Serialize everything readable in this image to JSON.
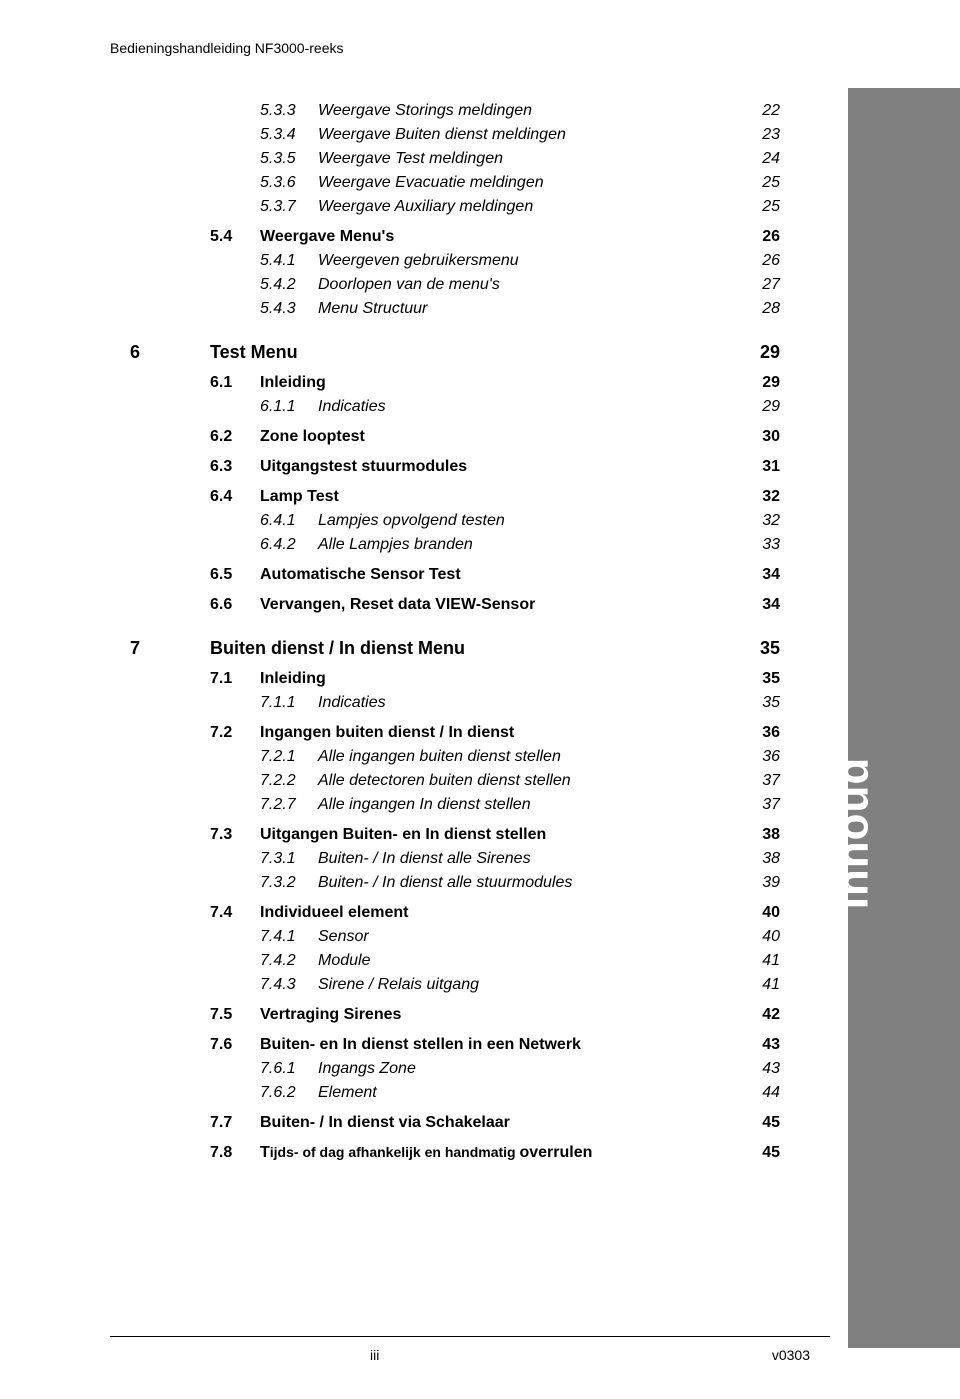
{
  "header": "Bedieningshandleiding NF3000-reeks",
  "sidebar_label": "Inhoud",
  "footer": {
    "left": "iii",
    "right": "v0303"
  },
  "toc": [
    {
      "lvl": 3,
      "num": "5.3.3",
      "title": "Weergave Storings meldingen",
      "pg": "22"
    },
    {
      "lvl": 3,
      "num": "5.3.4",
      "title": "Weergave Buiten dienst meldingen",
      "pg": "23"
    },
    {
      "lvl": 3,
      "num": "5.3.5",
      "title": "Weergave Test meldingen",
      "pg": "24"
    },
    {
      "lvl": 3,
      "num": "5.3.6",
      "title": "Weergave Evacuatie meldingen",
      "pg": "25"
    },
    {
      "lvl": 3,
      "num": "5.3.7",
      "title": "Weergave Auxiliary meldingen",
      "pg": "25"
    },
    {
      "lvl": 2,
      "num": "5.4",
      "title": "Weergave Menu's",
      "pg": "26"
    },
    {
      "lvl": 3,
      "num": "5.4.1",
      "title": "Weergeven gebruikersmenu",
      "pg": "26"
    },
    {
      "lvl": 3,
      "num": "5.4.2",
      "title": "Doorlopen van de menu's",
      "pg": "27"
    },
    {
      "lvl": 3,
      "num": "5.4.3",
      "title": "Menu Structuur",
      "pg": "28"
    },
    {
      "lvl": 1,
      "num": "6",
      "title": "Test Menu",
      "pg": "29"
    },
    {
      "lvl": 2,
      "num": "6.1",
      "title": "Inleiding",
      "pg": "29"
    },
    {
      "lvl": 3,
      "num": "6.1.1",
      "title": "Indicaties",
      "pg": "29"
    },
    {
      "lvl": 2,
      "num": "6.2",
      "title": "Zone looptest",
      "pg": "30"
    },
    {
      "lvl": 2,
      "num": "6.3",
      "title": "Uitgangstest stuurmodules",
      "pg": "31"
    },
    {
      "lvl": 2,
      "num": "6.4",
      "title": "Lamp Test",
      "pg": "32"
    },
    {
      "lvl": 3,
      "num": "6.4.1",
      "title": "Lampjes opvolgend testen",
      "pg": "32"
    },
    {
      "lvl": 3,
      "num": "6.4.2",
      "title": "Alle Lampjes branden",
      "pg": "33"
    },
    {
      "lvl": 2,
      "num": "6.5",
      "title": "Automatische Sensor Test",
      "pg": "34"
    },
    {
      "lvl": 2,
      "num": "6.6",
      "title": "Vervangen, Reset data VIEW-Sensor",
      "pg": "34"
    },
    {
      "lvl": 1,
      "num": "7",
      "title": "Buiten dienst / In dienst Menu",
      "pg": "35"
    },
    {
      "lvl": 2,
      "num": "7.1",
      "title": "Inleiding",
      "pg": "35"
    },
    {
      "lvl": 3,
      "num": "7.1.1",
      "title": "Indicaties",
      "pg": "35"
    },
    {
      "lvl": 2,
      "num": "7.2",
      "title": "Ingangen buiten dienst / In dienst",
      "pg": "36"
    },
    {
      "lvl": 3,
      "num": "7.2.1",
      "title": "Alle ingangen buiten dienst stellen",
      "pg": "36"
    },
    {
      "lvl": 3,
      "num": "7.2.2",
      "title": "Alle detectoren buiten dienst stellen",
      "pg": "37"
    },
    {
      "lvl": 3,
      "num": "7.2.7",
      "title": "Alle ingangen In dienst stellen",
      "pg": "37"
    },
    {
      "lvl": 2,
      "num": "7.3",
      "title": "Uitgangen Buiten- en In dienst stellen",
      "pg": "38"
    },
    {
      "lvl": 3,
      "num": "7.3.1",
      "title": "Buiten- / In dienst alle Sirenes",
      "pg": "38"
    },
    {
      "lvl": 3,
      "num": "7.3.2",
      "title": "Buiten- / In dienst alle stuurmodules",
      "pg": "39"
    },
    {
      "lvl": 2,
      "num": "7.4",
      "title": "Individueel element",
      "pg": "40"
    },
    {
      "lvl": 3,
      "num": "7.4.1",
      "title": "Sensor",
      "pg": "40"
    },
    {
      "lvl": 3,
      "num": "7.4.2",
      "title": "Module",
      "pg": "41"
    },
    {
      "lvl": 3,
      "num": "7.4.3",
      "title": "Sirene / Relais uitgang",
      "pg": "41"
    },
    {
      "lvl": 2,
      "num": "7.5",
      "title": "Vertraging Sirenes",
      "pg": "42"
    },
    {
      "lvl": 2,
      "num": "7.6",
      "title": "Buiten- en In dienst stellen in een Netwerk",
      "pg": "43"
    },
    {
      "lvl": 3,
      "num": "7.6.1",
      "title": "Ingangs Zone",
      "pg": "43"
    },
    {
      "lvl": 3,
      "num": "7.6.2",
      "title": "Element",
      "pg": "44"
    },
    {
      "lvl": 2,
      "num": "7.7",
      "title": "Buiten- / In dienst via Schakelaar",
      "pg": "45"
    }
  ],
  "last_row": {
    "num": "7.8",
    "title_part1": "T",
    "title_part2": "ijds- of dag afhankelijk en handmatig ",
    "title_part3": "overrulen",
    "pg": "45"
  }
}
